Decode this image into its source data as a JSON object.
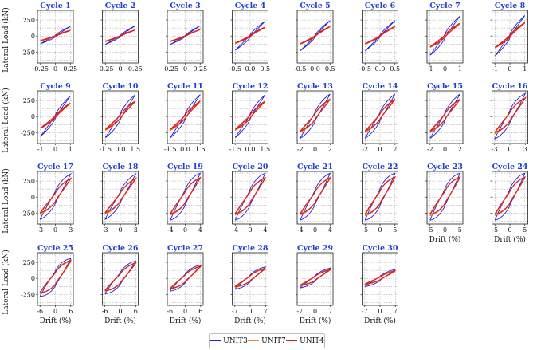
{
  "chart_data": {
    "type": "line",
    "ylabel": "Lateral Load (kN)",
    "xlabel": "Drift (%)",
    "yticks": [
      250,
      0,
      -250
    ],
    "ylim": [
      -420,
      400
    ],
    "legend": {
      "placement": "bottom-center",
      "entries": [
        {
          "name": "UNIT3",
          "color": "#1f1fd6"
        },
        {
          "name": "UNIT7",
          "color": "#f08a2a"
        },
        {
          "name": "UNIT4",
          "color": "#e01e1e"
        }
      ]
    },
    "panels": [
      {
        "title": "Cycle 1",
        "xlim": [
          -0.3,
          0.3
        ],
        "xticks": [
          -0.25,
          0,
          0.25
        ],
        "xtick_labels": [
          "-0.25",
          "0",
          "0.25"
        ],
        "peaks": {
          "UNIT3": [
            -120,
            150
          ],
          "UNIT7": [
            -80,
            80
          ],
          "UNIT4": [
            -70,
            90
          ]
        },
        "width": [
          0.15,
          0.1,
          0.1
        ]
      },
      {
        "title": "Cycle 2",
        "xlim": [
          -0.3,
          0.3
        ],
        "xticks": [
          -0.25,
          0,
          0.25
        ],
        "xtick_labels": [
          "-0.25",
          "0",
          "0.25"
        ],
        "peaks": {
          "UNIT3": [
            -130,
            160
          ],
          "UNIT7": [
            -90,
            90
          ],
          "UNIT4": [
            -80,
            95
          ]
        },
        "width": [
          0.12,
          0.08,
          0.08
        ]
      },
      {
        "title": "Cycle 3",
        "xlim": [
          -0.3,
          0.3
        ],
        "xticks": [
          -0.25,
          0,
          0.25
        ],
        "xtick_labels": [
          "-0.25",
          "0",
          "0.25"
        ],
        "peaks": {
          "UNIT3": [
            -130,
            160
          ],
          "UNIT7": [
            -90,
            100
          ],
          "UNIT4": [
            -80,
            100
          ]
        },
        "width": [
          0.1,
          0.08,
          0.08
        ]
      },
      {
        "title": "Cycle 4",
        "xlim": [
          -0.6,
          0.6
        ],
        "xticks": [
          -0.5,
          0,
          0.5
        ],
        "xtick_labels": [
          "-0.5",
          "0.0",
          "0.5"
        ],
        "peaks": {
          "UNIT3": [
            -220,
            230
          ],
          "UNIT7": [
            -120,
            130
          ],
          "UNIT4": [
            -110,
            140
          ]
        },
        "width": [
          0.15,
          0.1,
          0.1
        ]
      },
      {
        "title": "Cycle 5",
        "xlim": [
          -0.6,
          0.6
        ],
        "xticks": [
          -0.5,
          0,
          0.5
        ],
        "xtick_labels": [
          "-0.5",
          "0.0",
          "0.5"
        ],
        "peaks": {
          "UNIT3": [
            -230,
            240
          ],
          "UNIT7": [
            -130,
            140
          ],
          "UNIT4": [
            -120,
            150
          ]
        },
        "width": [
          0.1,
          0.08,
          0.08
        ]
      },
      {
        "title": "Cycle 6",
        "xlim": [
          -0.6,
          0.6
        ],
        "xticks": [
          -0.5,
          0,
          0.5
        ],
        "xtick_labels": [
          "-0.5",
          "0.0",
          "0.5"
        ],
        "peaks": {
          "UNIT3": [
            -230,
            240
          ],
          "UNIT7": [
            -130,
            140
          ],
          "UNIT4": [
            -120,
            150
          ]
        },
        "width": [
          0.1,
          0.08,
          0.08
        ]
      },
      {
        "title": "Cycle 7",
        "xlim": [
          -1.2,
          1.2
        ],
        "xticks": [
          -1,
          0,
          1
        ],
        "xtick_labels": [
          "-1",
          "0",
          "1"
        ],
        "peaks": {
          "UNIT3": [
            -300,
            310
          ],
          "UNIT7": [
            -180,
            190
          ],
          "UNIT4": [
            -170,
            200
          ]
        },
        "width": [
          0.18,
          0.15,
          0.15
        ]
      },
      {
        "title": "Cycle 8",
        "xlim": [
          -1.2,
          1.2
        ],
        "xticks": [
          -1,
          0,
          1
        ],
        "xtick_labels": [
          "-1",
          "0",
          "1"
        ],
        "peaks": {
          "UNIT3": [
            -310,
            320
          ],
          "UNIT7": [
            -190,
            200
          ],
          "UNIT4": [
            -180,
            210
          ]
        },
        "width": [
          0.15,
          0.12,
          0.12
        ]
      },
      {
        "title": "Cycle 9",
        "xlim": [
          -1.2,
          1.2
        ],
        "xticks": [
          -1,
          0,
          1
        ],
        "xtick_labels": [
          "-1",
          "0",
          "1"
        ],
        "peaks": {
          "UNIT3": [
            -310,
            320
          ],
          "UNIT7": [
            -190,
            200
          ],
          "UNIT4": [
            -180,
            210
          ]
        },
        "width": [
          0.15,
          0.12,
          0.12
        ]
      },
      {
        "title": "Cycle 10",
        "xlim": [
          -1.8,
          1.8
        ],
        "xticks": [
          -1.5,
          0,
          1.5
        ],
        "xtick_labels": [
          "-1.5",
          "0.0",
          "1.5"
        ],
        "peaks": {
          "UNIT3": [
            -330,
            340
          ],
          "UNIT7": [
            -220,
            230
          ],
          "UNIT4": [
            -200,
            240
          ]
        },
        "width": [
          0.25,
          0.2,
          0.2
        ]
      },
      {
        "title": "Cycle 11",
        "xlim": [
          -1.8,
          1.8
        ],
        "xticks": [
          -1.5,
          0,
          1.5
        ],
        "xtick_labels": [
          "-1.5",
          "0.0",
          "1.5"
        ],
        "peaks": {
          "UNIT3": [
            -330,
            340
          ],
          "UNIT7": [
            -220,
            230
          ],
          "UNIT4": [
            -200,
            240
          ]
        },
        "width": [
          0.22,
          0.18,
          0.18
        ]
      },
      {
        "title": "Cycle 12",
        "xlim": [
          -1.8,
          1.8
        ],
        "xticks": [
          -1.5,
          0,
          1.5
        ],
        "xtick_labels": [
          "-1.5",
          "0.0",
          "1.5"
        ],
        "peaks": {
          "UNIT3": [
            -330,
            340
          ],
          "UNIT7": [
            -220,
            230
          ],
          "UNIT4": [
            -200,
            240
          ]
        },
        "width": [
          0.2,
          0.18,
          0.18
        ]
      },
      {
        "title": "Cycle 13",
        "xlim": [
          -2.4,
          2.4
        ],
        "xticks": [
          -2,
          0,
          2
        ],
        "xtick_labels": [
          "-2",
          "0",
          "2"
        ],
        "peaks": {
          "UNIT3": [
            -340,
            350
          ],
          "UNIT7": [
            -250,
            260
          ],
          "UNIT4": [
            -230,
            270
          ]
        },
        "width": [
          0.35,
          0.3,
          0.3
        ]
      },
      {
        "title": "Cycle 14",
        "xlim": [
          -2.4,
          2.4
        ],
        "xticks": [
          -2,
          0,
          2
        ],
        "xtick_labels": [
          "-2",
          "0",
          "2"
        ],
        "peaks": {
          "UNIT3": [
            -340,
            350
          ],
          "UNIT7": [
            -250,
            260
          ],
          "UNIT4": [
            -230,
            270
          ]
        },
        "width": [
          0.32,
          0.28,
          0.28
        ]
      },
      {
        "title": "Cycle 15",
        "xlim": [
          -2.4,
          2.4
        ],
        "xticks": [
          -2,
          0,
          2
        ],
        "xtick_labels": [
          "-2",
          "0",
          "2"
        ],
        "peaks": {
          "UNIT3": [
            -340,
            350
          ],
          "UNIT7": [
            -250,
            260
          ],
          "UNIT4": [
            -230,
            270
          ]
        },
        "width": [
          0.3,
          0.28,
          0.28
        ]
      },
      {
        "title": "Cycle 16",
        "xlim": [
          -3.5,
          3.5
        ],
        "xticks": [
          -3,
          0,
          3
        ],
        "xtick_labels": [
          "-3",
          "0",
          "3"
        ],
        "peaks": {
          "UNIT3": [
            -350,
            360
          ],
          "UNIT7": [
            -270,
            280
          ],
          "UNIT4": [
            -250,
            290
          ]
        },
        "width": [
          0.45,
          0.4,
          0.4
        ]
      },
      {
        "title": "Cycle 17",
        "xlim": [
          -3.5,
          3.5
        ],
        "xticks": [
          -3,
          0,
          3
        ],
        "xtick_labels": [
          "-3",
          "0",
          "3"
        ],
        "peaks": {
          "UNIT3": [
            -350,
            360
          ],
          "UNIT7": [
            -270,
            280
          ],
          "UNIT4": [
            -250,
            290
          ]
        },
        "width": [
          0.45,
          0.4,
          0.4
        ]
      },
      {
        "title": "Cycle 18",
        "xlim": [
          -3.5,
          3.5
        ],
        "xticks": [
          -3,
          0,
          3
        ],
        "xtick_labels": [
          "-3",
          "0",
          "3"
        ],
        "peaks": {
          "UNIT3": [
            -350,
            360
          ],
          "UNIT7": [
            -270,
            280
          ],
          "UNIT4": [
            -250,
            290
          ]
        },
        "width": [
          0.42,
          0.38,
          0.38
        ]
      },
      {
        "title": "Cycle 19",
        "xlim": [
          -4.8,
          4.8
        ],
        "xticks": [
          -4,
          0,
          4
        ],
        "xtick_labels": [
          "-4",
          "0",
          "4"
        ],
        "peaks": {
          "UNIT3": [
            -360,
            370
          ],
          "UNIT7": [
            -280,
            290
          ],
          "UNIT4": [
            -260,
            300
          ]
        },
        "width": [
          0.55,
          0.5,
          0.5
        ]
      },
      {
        "title": "Cycle 20",
        "xlim": [
          -4.8,
          4.8
        ],
        "xticks": [
          -4,
          0,
          4
        ],
        "xtick_labels": [
          "-4",
          "0",
          "4"
        ],
        "peaks": {
          "UNIT3": [
            -360,
            370
          ],
          "UNIT7": [
            -280,
            290
          ],
          "UNIT4": [
            -260,
            300
          ]
        },
        "width": [
          0.55,
          0.5,
          0.5
        ]
      },
      {
        "title": "Cycle 21",
        "xlim": [
          -4.8,
          4.8
        ],
        "xticks": [
          -4,
          0,
          4
        ],
        "xtick_labels": [
          "-4",
          "0",
          "4"
        ],
        "peaks": {
          "UNIT3": [
            -360,
            370
          ],
          "UNIT7": [
            -280,
            290
          ],
          "UNIT4": [
            -260,
            300
          ]
        },
        "width": [
          0.52,
          0.48,
          0.48
        ]
      },
      {
        "title": "Cycle 22",
        "xlim": [
          -6,
          6
        ],
        "xticks": [
          -5,
          0,
          5
        ],
        "xtick_labels": [
          "-5",
          "0",
          "5"
        ],
        "peaks": {
          "UNIT3": [
            -360,
            370
          ],
          "UNIT7": [
            -290,
            300
          ],
          "UNIT4": [
            -270,
            310
          ]
        },
        "width": [
          0.6,
          0.55,
          0.55
        ]
      },
      {
        "title": "Cycle 23",
        "xlim": [
          -6,
          6
        ],
        "xticks": [
          -5,
          0,
          5
        ],
        "xtick_labels": [
          "-5",
          "0",
          "5"
        ],
        "peaks": {
          "UNIT3": [
            -360,
            370
          ],
          "UNIT7": [
            -290,
            300
          ],
          "UNIT4": [
            -270,
            310
          ]
        },
        "width": [
          0.6,
          0.55,
          0.55
        ]
      },
      {
        "title": "Cycle 24",
        "xlim": [
          -6,
          6
        ],
        "xticks": [
          -5,
          0,
          5
        ],
        "xtick_labels": [
          "-5",
          "0",
          "5"
        ],
        "peaks": {
          "UNIT3": [
            -360,
            370
          ],
          "UNIT7": [
            -290,
            300
          ],
          "UNIT4": [
            -270,
            310
          ]
        },
        "width": [
          0.58,
          0.52,
          0.52
        ]
      },
      {
        "title": "Cycle 25",
        "xlim": [
          -7,
          7
        ],
        "xticks": [
          -6,
          0,
          6
        ],
        "xtick_labels": [
          "-6",
          "0",
          "6"
        ],
        "peaks": {
          "UNIT3": [
            -280,
            310
          ],
          "UNIT7": [
            -230,
            260
          ],
          "UNIT4": [
            -220,
            280
          ]
        },
        "width": [
          0.65,
          0.6,
          0.6
        ]
      },
      {
        "title": "Cycle 26",
        "xlim": [
          -7,
          7
        ],
        "xticks": [
          -6,
          0,
          6
        ],
        "xtick_labels": [
          "-6",
          "0",
          "6"
        ],
        "peaks": {
          "UNIT3": [
            -240,
            270
          ],
          "UNIT7": [
            -200,
            230
          ],
          "UNIT4": [
            -190,
            240
          ]
        },
        "width": [
          0.6,
          0.55,
          0.55
        ]
      },
      {
        "title": "Cycle 27",
        "xlim": [
          -7,
          7
        ],
        "xticks": [
          -6,
          0,
          6
        ],
        "xtick_labels": [
          "-6",
          "0",
          "6"
        ],
        "peaks": {
          "UNIT3": [
            -200,
            210
          ],
          "UNIT7": [
            -170,
            180
          ],
          "UNIT4": [
            -160,
            190
          ]
        },
        "width": [
          0.55,
          0.5,
          0.5
        ]
      },
      {
        "title": "Cycle 28",
        "xlim": [
          -8.2,
          8.2
        ],
        "xticks": [
          -7,
          0,
          7
        ],
        "xtick_labels": [
          "-7",
          "0",
          "7"
        ],
        "peaks": {
          "UNIT3": [
            -170,
            180
          ],
          "UNIT7": [
            -140,
            150
          ],
          "UNIT4": [
            -130,
            160
          ]
        },
        "width": [
          0.5,
          0.45,
          0.45
        ]
      },
      {
        "title": "Cycle 29",
        "xlim": [
          -8.2,
          8.2
        ],
        "xticks": [
          -7,
          0,
          7
        ],
        "xtick_labels": [
          "-7",
          "0",
          "7"
        ],
        "peaks": {
          "UNIT3": [
            -150,
            160
          ],
          "UNIT7": [
            -120,
            130
          ],
          "UNIT4": [
            -110,
            140
          ]
        },
        "width": [
          0.45,
          0.4,
          0.4
        ]
      },
      {
        "title": "Cycle 30",
        "xlim": [
          -8.2,
          8.2
        ],
        "xticks": [
          -7,
          0,
          7
        ],
        "xtick_labels": [
          "-7",
          "0",
          "7"
        ],
        "peaks": {
          "UNIT3": [
            -130,
            140
          ],
          "UNIT7": [
            -100,
            110
          ],
          "UNIT4": [
            -90,
            120
          ]
        },
        "width": [
          0.4,
          0.35,
          0.35
        ]
      }
    ]
  }
}
